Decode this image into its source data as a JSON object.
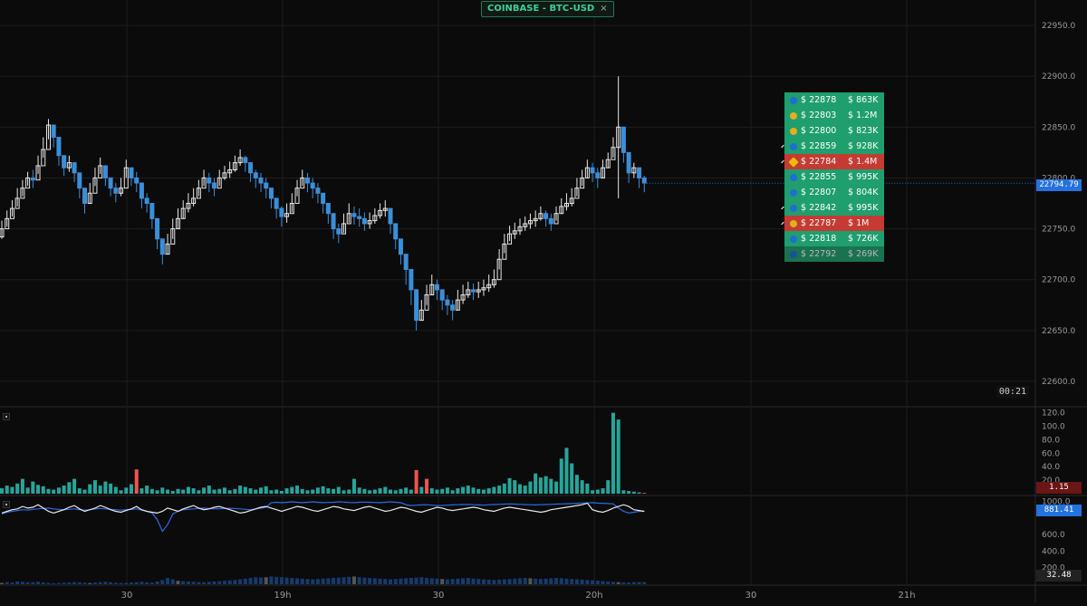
{
  "header": {
    "ticker": "COINBASE - BTC-USD",
    "close_label": "×"
  },
  "timer": "00:21",
  "price_axis": {
    "ticks": [
      "22950.0",
      "22900.0",
      "22850.0",
      "22800.0",
      "22750.0",
      "22700.0",
      "22650.0",
      "22600.0"
    ],
    "last_price": "22794.79"
  },
  "volume_axis": {
    "ticks": [
      "120.0",
      "100.0",
      "80.0",
      "60.0",
      "40.0",
      "20.0"
    ],
    "last_value": "1.15"
  },
  "indicator_axis": {
    "ticks": [
      "1000.0",
      "600.0",
      "400.0",
      "200.0"
    ],
    "line_value": "881.41",
    "bar_value": "32.48"
  },
  "time_axis": {
    "ticks": [
      "30",
      "19h",
      "30",
      "20h",
      "30",
      "21h"
    ]
  },
  "trades": [
    {
      "price": "$ 22878",
      "size": "$ 863K",
      "side": "buy",
      "icon": "circle-icon"
    },
    {
      "price": "$ 22803",
      "size": "$ 1.2M",
      "side": "buy",
      "icon": "coin-icon"
    },
    {
      "price": "$ 22800",
      "size": "$ 823K",
      "side": "buy",
      "icon": "coin-icon"
    },
    {
      "price": "$ 22859",
      "size": "$ 928K",
      "side": "buy",
      "icon": "circle-icon"
    },
    {
      "price": "$ 22784",
      "size": "$ 1.4M",
      "side": "sell",
      "icon": "diamond-icon"
    },
    {
      "price": "$ 22855",
      "size": "$ 995K",
      "side": "buy",
      "icon": "circle-icon"
    },
    {
      "price": "$ 22807",
      "size": "$ 804K",
      "side": "buy",
      "icon": "chain-icon"
    },
    {
      "price": "$ 22842",
      "size": "$ 995K",
      "side": "buy",
      "icon": "circle-icon"
    },
    {
      "price": "$ 22787",
      "size": "$ 1M",
      "side": "sell",
      "icon": "coin-icon"
    },
    {
      "price": "$ 22818",
      "size": "$ 726K",
      "side": "buy",
      "icon": "circle-icon"
    },
    {
      "price": "$ 22792",
      "size": "$ 269K",
      "side": "buy",
      "icon": "circle-icon"
    }
  ],
  "colors": {
    "up": "#e8e8e8",
    "down": "#3a8fd9",
    "buy": "#1f9e6e",
    "sell": "#c53b33",
    "vol_up": "#26a69a",
    "vol_down": "#ef5350",
    "line_blue": "#2d6be0",
    "line_white": "#e8e8e8"
  },
  "chart_data": [
    {
      "type": "candlestick",
      "x_ticks": [
        "30",
        "19h",
        "30",
        "20h",
        "30",
        "21h"
      ],
      "ylim": [
        22575,
        22975
      ],
      "last": 22794.79,
      "closes": [
        22750,
        22760,
        22770,
        22780,
        22790,
        22800,
        22798,
        22812,
        22828,
        22852,
        22840,
        22822,
        22810,
        22815,
        22805,
        22790,
        22775,
        22785,
        22800,
        22812,
        22800,
        22790,
        22785,
        22790,
        22810,
        22800,
        22795,
        22780,
        22775,
        22760,
        22740,
        22725,
        22735,
        22750,
        22760,
        22770,
        22775,
        22780,
        22790,
        22800,
        22795,
        22790,
        22800,
        22805,
        22808,
        22815,
        22820,
        22815,
        22805,
        22800,
        22795,
        22790,
        22780,
        22770,
        22762,
        22765,
        22775,
        22790,
        22800,
        22795,
        22790,
        22785,
        22775,
        22765,
        22750,
        22745,
        22755,
        22765,
        22762,
        22760,
        22755,
        22758,
        22763,
        22768,
        22770,
        22755,
        22740,
        22725,
        22710,
        22690,
        22660,
        22670,
        22685,
        22695,
        22690,
        22680,
        22675,
        22670,
        22680,
        22685,
        22690,
        22688,
        22690,
        22692,
        22695,
        22700,
        22720,
        22735,
        22745,
        22748,
        22752,
        22755,
        22758,
        22760,
        22765,
        22760,
        22755,
        22765,
        22772,
        22775,
        22780,
        22790,
        22800,
        22810,
        22805,
        22800,
        22810,
        22818,
        22830,
        22850,
        22825,
        22805,
        22810,
        22800,
        22795
      ],
      "highs": [
        22758,
        22768,
        22778,
        22790,
        22798,
        22806,
        22808,
        22822,
        22840,
        22858,
        22850,
        22832,
        22820,
        22822,
        22815,
        22800,
        22788,
        22795,
        22810,
        22820,
        22812,
        22800,
        22795,
        22800,
        22818,
        22810,
        22806,
        22792,
        22785,
        22772,
        22752,
        22738,
        22745,
        22760,
        22770,
        22778,
        22785,
        22790,
        22798,
        22808,
        22805,
        22800,
        22808,
        22812,
        22816,
        22822,
        22828,
        22822,
        22815,
        22808,
        22805,
        22800,
        22790,
        22780,
        22772,
        22775,
        22785,
        22798,
        22808,
        22805,
        22800,
        22795,
        22785,
        22775,
        22760,
        22755,
        22765,
        22775,
        22772,
        22770,
        22766,
        22766,
        22770,
        22775,
        22778,
        22765,
        22750,
        22738,
        22725,
        22705,
        22675,
        22680,
        22695,
        22705,
        22700,
        22690,
        22685,
        22680,
        22690,
        22695,
        22698,
        22696,
        22698,
        22700,
        22705,
        22710,
        22730,
        22745,
        22753,
        22756,
        22760,
        22762,
        22765,
        22768,
        22772,
        22768,
        22765,
        22772,
        22780,
        22785,
        22790,
        22800,
        22808,
        22818,
        22815,
        22810,
        22818,
        22825,
        22840,
        22900,
        22835,
        22812,
        22815,
        22808,
        22802
      ],
      "lows": [
        22740,
        22752,
        22762,
        22772,
        22782,
        22792,
        22790,
        22804,
        22820,
        22838,
        22830,
        22812,
        22802,
        22806,
        22796,
        22780,
        22765,
        22775,
        22792,
        22804,
        22792,
        22782,
        22776,
        22782,
        22800,
        22792,
        22786,
        22770,
        22766,
        22750,
        22730,
        22715,
        22725,
        22740,
        22750,
        22760,
        22766,
        22772,
        22782,
        22792,
        22786,
        22782,
        22792,
        22798,
        22800,
        22806,
        22812,
        22806,
        22796,
        22790,
        22786,
        22780,
        22770,
        22760,
        22752,
        22756,
        22766,
        22782,
        22792,
        22786,
        22780,
        22775,
        22765,
        22755,
        22740,
        22736,
        22746,
        22756,
        22754,
        22752,
        22748,
        22750,
        22755,
        22760,
        22762,
        22745,
        22730,
        22715,
        22695,
        22675,
        22650,
        22660,
        22675,
        22685,
        22680,
        22670,
        22665,
        22660,
        22670,
        22676,
        22682,
        22680,
        22682,
        22684,
        22688,
        22692,
        22710,
        22726,
        22738,
        22740,
        22744,
        22748,
        22750,
        22752,
        22758,
        22752,
        22748,
        22758,
        22765,
        22768,
        22772,
        22782,
        22792,
        22800,
        22796,
        22790,
        22800,
        22810,
        22820,
        22780,
        22815,
        22795,
        22800,
        22790,
        22786
      ]
    },
    {
      "type": "bar",
      "name": "volume",
      "ylim": [
        0,
        125
      ],
      "last": 1.15,
      "values": [
        8,
        12,
        10,
        15,
        22,
        9,
        18,
        13,
        11,
        7,
        6,
        9,
        12,
        17,
        22,
        8,
        6,
        14,
        20,
        12,
        18,
        15,
        10,
        5,
        9,
        14,
        36,
        8,
        12,
        7,
        5,
        9,
        6,
        4,
        7,
        6,
        10,
        8,
        5,
        9,
        12,
        6,
        7,
        9,
        5,
        7,
        12,
        10,
        8,
        6,
        9,
        11,
        5,
        6,
        4,
        8,
        10,
        12,
        7,
        5,
        6,
        9,
        11,
        8,
        7,
        10,
        5,
        6,
        22,
        9,
        7,
        5,
        6,
        8,
        10,
        6,
        5,
        7,
        9,
        6,
        35,
        10,
        22,
        8,
        6,
        7,
        9,
        5,
        8,
        10,
        12,
        9,
        7,
        6,
        8,
        10,
        12,
        15,
        23,
        20,
        14,
        12,
        18,
        30,
        24,
        26,
        22,
        18,
        52,
        68,
        45,
        28,
        20,
        15,
        5,
        6,
        8,
        20,
        120,
        110,
        5,
        4,
        3,
        2,
        1.15
      ],
      "down_indices": [
        26,
        80,
        82,
        124
      ]
    },
    {
      "type": "line",
      "name": "oscillator",
      "ylim": [
        0,
        1050
      ],
      "series": [
        {
          "name": "blue",
          "values": [
            850,
            870,
            880,
            890,
            900,
            895,
            905,
            910,
            915,
            920,
            910,
            905,
            900,
            905,
            910,
            900,
            895,
            900,
            910,
            915,
            910,
            905,
            900,
            895,
            900,
            905,
            910,
            895,
            880,
            860,
            780,
            640,
            720,
            850,
            880,
            900,
            905,
            910,
            915,
            920,
            915,
            910,
            912,
            915,
            918,
            915,
            910,
            905,
            900,
            910,
            920,
            930,
            985,
            990,
            985,
            990,
            995,
            990,
            985,
            990,
            995,
            990,
            985,
            988,
            990,
            995,
            992,
            988,
            986,
            990,
            992,
            990,
            988,
            985,
            990,
            995,
            990,
            985,
            960,
            950,
            955,
            958,
            960,
            955,
            950,
            952,
            955,
            958,
            960,
            962,
            965,
            960,
            958,
            955,
            960,
            962,
            965,
            968,
            970,
            968,
            965,
            962,
            960,
            958,
            960,
            962,
            965,
            968,
            970,
            972,
            975,
            978,
            980,
            982,
            985,
            980,
            978,
            975,
            970,
            920,
            880,
            860,
            870,
            880,
            881
          ]
        },
        {
          "name": "white",
          "values": [
            860,
            880,
            900,
            910,
            940,
            920,
            930,
            960,
            920,
            880,
            860,
            880,
            900,
            930,
            950,
            910,
            880,
            900,
            920,
            950,
            930,
            900,
            880,
            870,
            890,
            910,
            940,
            900,
            880,
            870,
            860,
            880,
            920,
            900,
            880,
            910,
            930,
            950,
            920,
            900,
            910,
            930,
            940,
            920,
            900,
            880,
            860,
            870,
            890,
            910,
            930,
            940,
            920,
            900,
            880,
            900,
            920,
            940,
            930,
            910,
            890,
            880,
            900,
            920,
            940,
            930,
            910,
            900,
            890,
            910,
            930,
            940,
            920,
            900,
            880,
            890,
            910,
            930,
            920,
            900,
            880,
            870,
            890,
            910,
            930,
            920,
            900,
            890,
            900,
            910,
            920,
            930,
            920,
            900,
            890,
            880,
            900,
            920,
            930,
            920,
            910,
            900,
            890,
            880,
            870,
            880,
            900,
            910,
            920,
            930,
            940,
            950,
            960,
            980,
            900,
            880,
            870,
            890,
            920,
            940,
            960,
            940,
            900,
            890,
            881
          ]
        }
      ]
    },
    {
      "type": "bar",
      "name": "sub-volume",
      "ylim": [
        0,
        250
      ],
      "last": 32.48,
      "values": [
        20,
        30,
        25,
        40,
        35,
        28,
        30,
        35,
        25,
        20,
        15,
        18,
        22,
        25,
        30,
        28,
        22,
        18,
        25,
        30,
        35,
        28,
        22,
        18,
        20,
        25,
        30,
        35,
        28,
        25,
        40,
        60,
        90,
        70,
        50,
        45,
        40,
        35,
        30,
        28,
        35,
        40,
        45,
        50,
        55,
        60,
        70,
        80,
        90,
        100,
        95,
        100,
        110,
        105,
        100,
        95,
        90,
        85,
        80,
        75,
        70,
        75,
        80,
        85,
        90,
        95,
        100,
        105,
        110,
        100,
        95,
        90,
        85,
        80,
        75,
        70,
        75,
        80,
        85,
        90,
        95,
        100,
        90,
        85,
        80,
        75,
        70,
        75,
        80,
        85,
        90,
        80,
        75,
        70,
        65,
        60,
        65,
        70,
        75,
        80,
        85,
        90,
        85,
        80,
        75,
        80,
        85,
        90,
        85,
        80,
        75,
        70,
        65,
        60,
        55,
        50,
        45,
        40,
        35,
        30,
        28,
        25,
        30,
        32,
        32.48
      ]
    }
  ]
}
